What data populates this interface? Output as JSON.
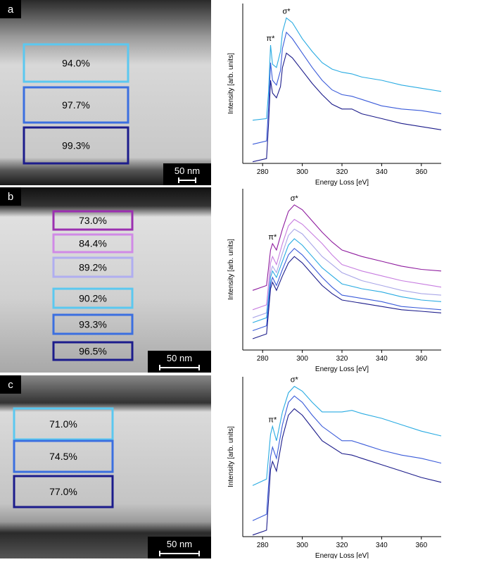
{
  "images": [
    {
      "label": "a",
      "scale_bar": "50 nm",
      "regions": [
        {
          "label": "94.0%",
          "color": "#5bc8f0"
        },
        {
          "label": "97.7%",
          "color": "#3b6fe0"
        },
        {
          "label": "99.3%",
          "color": "#1c1c8c"
        }
      ]
    },
    {
      "label": "b",
      "scale_bar": "50 nm",
      "regions": [
        {
          "label": "73.0%",
          "color": "#9b2fb0"
        },
        {
          "label": "84.4%",
          "color": "#d08ae6"
        },
        {
          "label": "89.2%",
          "color": "#b0aef0"
        },
        {
          "label": "90.2%",
          "color": "#5bc8f0"
        },
        {
          "label": "93.3%",
          "color": "#3b6fe0"
        },
        {
          "label": "96.5%",
          "color": "#1c1c8c"
        }
      ]
    },
    {
      "label": "c",
      "scale_bar": "50 nm",
      "regions": [
        {
          "label": "71.0%",
          "color": "#5bc8f0"
        },
        {
          "label": "74.5%",
          "color": "#3b6fe0"
        },
        {
          "label": "77.0%",
          "color": "#1c1c8c"
        }
      ]
    }
  ],
  "chart_data": [
    {
      "type": "line",
      "x_label": "Energy Loss [eV]",
      "y_label": "Intensity [arb. units]",
      "xlim": [
        270,
        370
      ],
      "xticks": [
        280,
        300,
        320,
        340,
        360
      ],
      "ylim": [
        0,
        100
      ],
      "annotations": [
        "π*",
        "σ*"
      ],
      "x": [
        275,
        282,
        283,
        284,
        285,
        287,
        289,
        290,
        292,
        295,
        300,
        305,
        310,
        315,
        320,
        325,
        330,
        340,
        350,
        360,
        370
      ],
      "series": [
        {
          "color": "#29abe2",
          "values": [
            27,
            28,
            45,
            74,
            62,
            60,
            70,
            82,
            91,
            88,
            78,
            70,
            63,
            59,
            57,
            56,
            54,
            52,
            49,
            47,
            45
          ]
        },
        {
          "color": "#3a5bd9",
          "values": [
            12,
            14,
            35,
            63,
            52,
            49,
            58,
            72,
            82,
            78,
            69,
            60,
            52,
            46,
            43,
            42,
            40,
            36,
            34,
            33,
            31
          ]
        },
        {
          "color": "#1b1b8a",
          "values": [
            1,
            3,
            25,
            52,
            44,
            41,
            48,
            60,
            69,
            66,
            58,
            50,
            43,
            37,
            34,
            34,
            31,
            28,
            25,
            23,
            21
          ]
        }
      ]
    },
    {
      "type": "line",
      "x_label": "Energy Loss [eV]",
      "y_label": "Intensity [arb. units]",
      "xlim": [
        270,
        370
      ],
      "xticks": [
        280,
        300,
        320,
        340,
        360
      ],
      "ylim": [
        0,
        100
      ],
      "annotations": [
        "π*",
        "σ*"
      ],
      "x": [
        275,
        282,
        284,
        285,
        287,
        290,
        293,
        296,
        300,
        305,
        310,
        315,
        320,
        330,
        340,
        350,
        360,
        370
      ],
      "series": [
        {
          "color": "#8e1b9e",
          "values": [
            37,
            40,
            62,
            66,
            62,
            75,
            86,
            90,
            87,
            80,
            73,
            67,
            62,
            58,
            55,
            52,
            50,
            49
          ]
        },
        {
          "color": "#c77de0",
          "values": [
            25,
            28,
            54,
            58,
            53,
            66,
            77,
            81,
            78,
            72,
            66,
            59,
            53,
            49,
            46,
            43,
            41,
            39
          ]
        },
        {
          "color": "#a9a6e8",
          "values": [
            20,
            23,
            48,
            52,
            48,
            60,
            71,
            75,
            72,
            65,
            58,
            53,
            48,
            43,
            40,
            37,
            35,
            34
          ]
        },
        {
          "color": "#29abe2",
          "values": [
            17,
            20,
            45,
            49,
            45,
            55,
            65,
            69,
            65,
            58,
            51,
            46,
            41,
            38,
            36,
            33,
            31,
            30
          ]
        },
        {
          "color": "#3a5bd9",
          "values": [
            12,
            15,
            41,
            45,
            40,
            50,
            59,
            63,
            59,
            52,
            45,
            39,
            34,
            32,
            30,
            27,
            26,
            25
          ]
        },
        {
          "color": "#1b1b8a",
          "values": [
            7,
            10,
            38,
            42,
            37,
            46,
            54,
            58,
            54,
            47,
            40,
            35,
            31,
            29,
            27,
            25,
            24,
            23
          ]
        }
      ]
    },
    {
      "type": "line",
      "x_label": "Energy Loss [eV]",
      "y_label": "Intensity [arb. units]",
      "xlim": [
        270,
        370
      ],
      "xticks": [
        280,
        300,
        320,
        340,
        360
      ],
      "ylim": [
        0,
        100
      ],
      "annotations": [
        "π*",
        "σ*"
      ],
      "x": [
        275,
        282,
        284,
        285,
        287,
        290,
        293,
        296,
        300,
        305,
        310,
        320,
        325,
        330,
        340,
        350,
        360,
        370
      ],
      "series": [
        {
          "color": "#29abe2",
          "values": [
            32,
            36,
            64,
            69,
            60,
            78,
            90,
            94,
            91,
            84,
            78,
            78,
            79,
            77,
            74,
            70,
            66,
            63
          ]
        },
        {
          "color": "#3a5bd9",
          "values": [
            10,
            14,
            50,
            56,
            49,
            70,
            84,
            88,
            84,
            76,
            69,
            60,
            60,
            58,
            54,
            51,
            49,
            46
          ]
        },
        {
          "color": "#1b1b8a",
          "values": [
            1,
            4,
            42,
            47,
            41,
            62,
            76,
            80,
            76,
            68,
            60,
            52,
            51,
            49,
            45,
            41,
            37,
            34
          ]
        }
      ]
    }
  ]
}
